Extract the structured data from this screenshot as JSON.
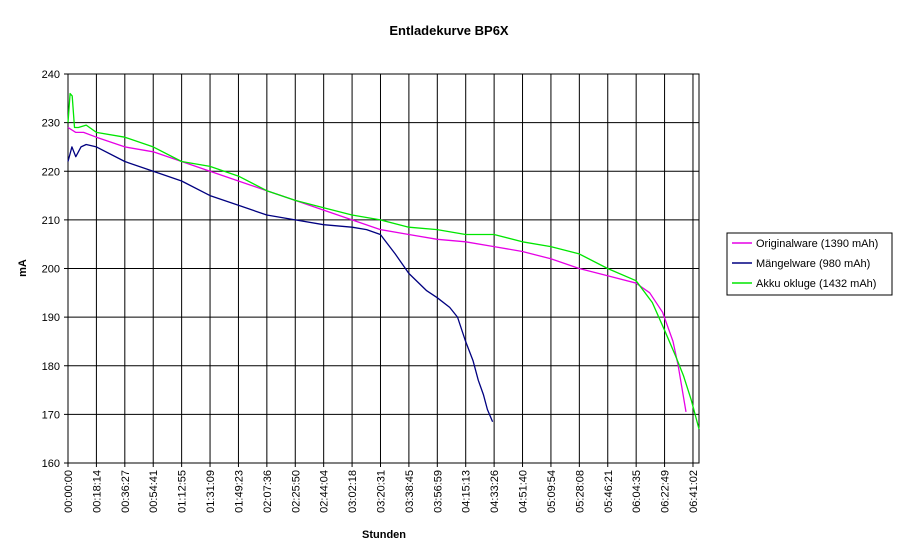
{
  "chart_data": {
    "type": "line",
    "title": "Entladekurve BP6X",
    "xlabel": "Stunden",
    "ylabel": "mA",
    "ylim": [
      160,
      240
    ],
    "ytick_step": 10,
    "xlim": [
      0,
      24300
    ],
    "grid": true,
    "legend_position": "right",
    "x_tick_labels": [
      "00:00:00",
      "00:18:14",
      "00:36:27",
      "00:54:41",
      "01:12:55",
      "01:31:09",
      "01:49:23",
      "02:07:36",
      "02:25:50",
      "02:44:04",
      "03:02:18",
      "03:20:31",
      "03:38:45",
      "03:56:59",
      "04:15:13",
      "04:33:26",
      "04:51:40",
      "05:09:54",
      "05:28:08",
      "05:46:21",
      "06:04:35",
      "06:22:49",
      "06:41:02"
    ],
    "series": [
      {
        "name": "Originalware (1390 mAh)",
        "color": "#e600e6",
        "x": [
          0,
          300,
          600,
          1094,
          2188,
          3281,
          4375,
          5469,
          6563,
          7656,
          8750,
          9844,
          10938,
          12031,
          13125,
          14219,
          15313,
          16406,
          17500,
          18594,
          19688,
          20781,
          21875,
          22400,
          22900,
          23300,
          23500,
          23800
        ],
        "y": [
          229,
          228,
          228,
          227,
          225,
          224,
          222,
          220,
          218,
          216,
          214,
          212,
          210,
          208,
          207,
          206,
          205.5,
          204.5,
          203.5,
          202,
          200,
          198.5,
          197,
          195,
          191,
          185,
          180,
          170.5
        ]
      },
      {
        "name": "Mängelware (980 mAh)",
        "color": "#000080",
        "x": [
          0,
          150,
          300,
          500,
          700,
          1094,
          2188,
          3281,
          4375,
          5469,
          6563,
          7656,
          8750,
          9844,
          10938,
          11500,
          12031,
          12600,
          13125,
          13800,
          14219,
          14700,
          15000,
          15313,
          15600,
          15800,
          16000,
          16150,
          16350
        ],
        "y": [
          222,
          225,
          223,
          225,
          225.5,
          225,
          222,
          220,
          218,
          215,
          213,
          211,
          210,
          209,
          208.5,
          208,
          207,
          203,
          199,
          195.5,
          194,
          192,
          190,
          185,
          181,
          177,
          174,
          171,
          168.5
        ]
      },
      {
        "name": "Akku okluge (1432 mAh)",
        "color": "#00e600",
        "x": [
          0,
          80,
          160,
          250,
          400,
          700,
          1094,
          2188,
          3281,
          4375,
          5469,
          6563,
          7656,
          8750,
          9844,
          10938,
          12031,
          13125,
          14219,
          15313,
          16406,
          17500,
          18594,
          19688,
          20781,
          21875,
          22500,
          23000,
          23400,
          23700,
          24000,
          24300
        ],
        "y": [
          230,
          236,
          235.5,
          229,
          229,
          229.5,
          228,
          227,
          225,
          222,
          221,
          219,
          216,
          214,
          212.5,
          211,
          210,
          208.5,
          208,
          207,
          207,
          205.5,
          204.5,
          203,
          200,
          197.5,
          193,
          187,
          182,
          178,
          173,
          167
        ]
      }
    ]
  }
}
